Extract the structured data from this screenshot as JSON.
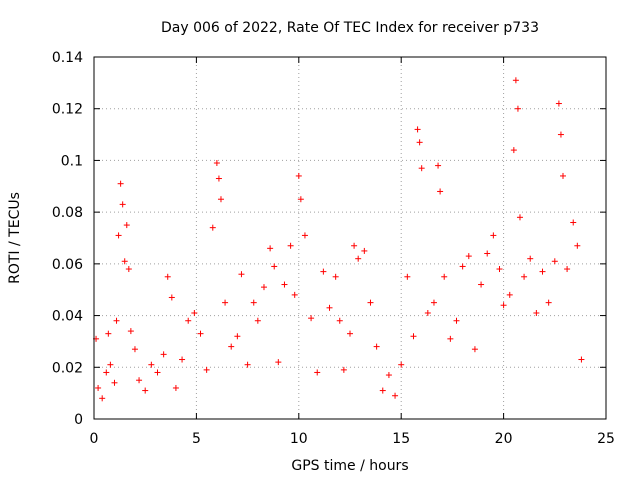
{
  "chart_data": {
    "type": "scatter",
    "title": "Day 006 of 2022, Rate Of TEC Index for receiver p733",
    "xlabel": "GPS time / hours",
    "ylabel": "ROTI / TECUs",
    "xlim": [
      0,
      25
    ],
    "ylim": [
      0,
      0.14
    ],
    "x_ticks": [
      0,
      5,
      10,
      15,
      20,
      25
    ],
    "y_ticks": [
      0,
      0.02,
      0.04,
      0.06,
      0.08,
      0.1,
      0.12,
      0.14
    ],
    "x_tick_labels": [
      "0",
      "5",
      "10",
      "15",
      "20",
      "25"
    ],
    "y_tick_labels": [
      "0",
      "0.02",
      "0.04",
      "0.06",
      "0.08",
      "0.1",
      "0.12",
      "0.14"
    ],
    "grid": true,
    "marker": "+",
    "color": "#ff0000",
    "series": [
      {
        "points": [
          [
            0.1,
            0.031
          ],
          [
            0.2,
            0.012
          ],
          [
            0.4,
            0.008
          ],
          [
            0.6,
            0.018
          ],
          [
            0.7,
            0.033
          ],
          [
            0.8,
            0.021
          ],
          [
            1.0,
            0.014
          ],
          [
            1.1,
            0.038
          ],
          [
            1.2,
            0.071
          ],
          [
            1.3,
            0.091
          ],
          [
            1.4,
            0.083
          ],
          [
            1.5,
            0.061
          ],
          [
            1.6,
            0.075
          ],
          [
            1.7,
            0.058
          ],
          [
            1.8,
            0.034
          ],
          [
            2.0,
            0.027
          ],
          [
            2.2,
            0.015
          ],
          [
            2.5,
            0.011
          ],
          [
            2.8,
            0.021
          ],
          [
            3.1,
            0.018
          ],
          [
            3.4,
            0.025
          ],
          [
            3.6,
            0.055
          ],
          [
            3.8,
            0.047
          ],
          [
            4.0,
            0.012
          ],
          [
            4.3,
            0.023
          ],
          [
            4.6,
            0.038
          ],
          [
            4.9,
            0.041
          ],
          [
            5.2,
            0.033
          ],
          [
            5.5,
            0.019
          ],
          [
            5.8,
            0.074
          ],
          [
            6.0,
            0.099
          ],
          [
            6.1,
            0.093
          ],
          [
            6.2,
            0.085
          ],
          [
            6.4,
            0.045
          ],
          [
            6.7,
            0.028
          ],
          [
            7.0,
            0.032
          ],
          [
            7.2,
            0.056
          ],
          [
            7.5,
            0.021
          ],
          [
            7.8,
            0.045
          ],
          [
            8.0,
            0.038
          ],
          [
            8.3,
            0.051
          ],
          [
            8.6,
            0.066
          ],
          [
            8.8,
            0.059
          ],
          [
            9.0,
            0.022
          ],
          [
            9.3,
            0.052
          ],
          [
            9.6,
            0.067
          ],
          [
            9.8,
            0.048
          ],
          [
            10.0,
            0.094
          ],
          [
            10.1,
            0.085
          ],
          [
            10.3,
            0.071
          ],
          [
            10.6,
            0.039
          ],
          [
            10.9,
            0.018
          ],
          [
            11.2,
            0.057
          ],
          [
            11.5,
            0.043
          ],
          [
            11.8,
            0.055
          ],
          [
            12.0,
            0.038
          ],
          [
            12.2,
            0.019
          ],
          [
            12.5,
            0.033
          ],
          [
            12.7,
            0.067
          ],
          [
            12.9,
            0.062
          ],
          [
            13.2,
            0.065
          ],
          [
            13.5,
            0.045
          ],
          [
            13.8,
            0.028
          ],
          [
            14.1,
            0.011
          ],
          [
            14.4,
            0.017
          ],
          [
            14.7,
            0.009
          ],
          [
            15.0,
            0.021
          ],
          [
            15.3,
            0.055
          ],
          [
            15.6,
            0.032
          ],
          [
            15.8,
            0.112
          ],
          [
            15.9,
            0.107
          ],
          [
            16.0,
            0.097
          ],
          [
            16.3,
            0.041
          ],
          [
            16.6,
            0.045
          ],
          [
            16.8,
            0.098
          ],
          [
            16.9,
            0.088
          ],
          [
            17.1,
            0.055
          ],
          [
            17.4,
            0.031
          ],
          [
            17.7,
            0.038
          ],
          [
            18.0,
            0.059
          ],
          [
            18.3,
            0.063
          ],
          [
            18.6,
            0.027
          ],
          [
            18.9,
            0.052
          ],
          [
            19.2,
            0.064
          ],
          [
            19.5,
            0.071
          ],
          [
            19.8,
            0.058
          ],
          [
            20.0,
            0.044
          ],
          [
            20.3,
            0.048
          ],
          [
            20.5,
            0.104
          ],
          [
            20.6,
            0.131
          ],
          [
            20.7,
            0.12
          ],
          [
            20.8,
            0.078
          ],
          [
            21.0,
            0.055
          ],
          [
            21.3,
            0.062
          ],
          [
            21.6,
            0.041
          ],
          [
            21.9,
            0.057
          ],
          [
            22.2,
            0.045
          ],
          [
            22.5,
            0.061
          ],
          [
            22.7,
            0.122
          ],
          [
            22.8,
            0.11
          ],
          [
            22.9,
            0.094
          ],
          [
            23.1,
            0.058
          ],
          [
            23.4,
            0.076
          ],
          [
            23.6,
            0.067
          ],
          [
            23.8,
            0.023
          ]
        ]
      }
    ]
  }
}
